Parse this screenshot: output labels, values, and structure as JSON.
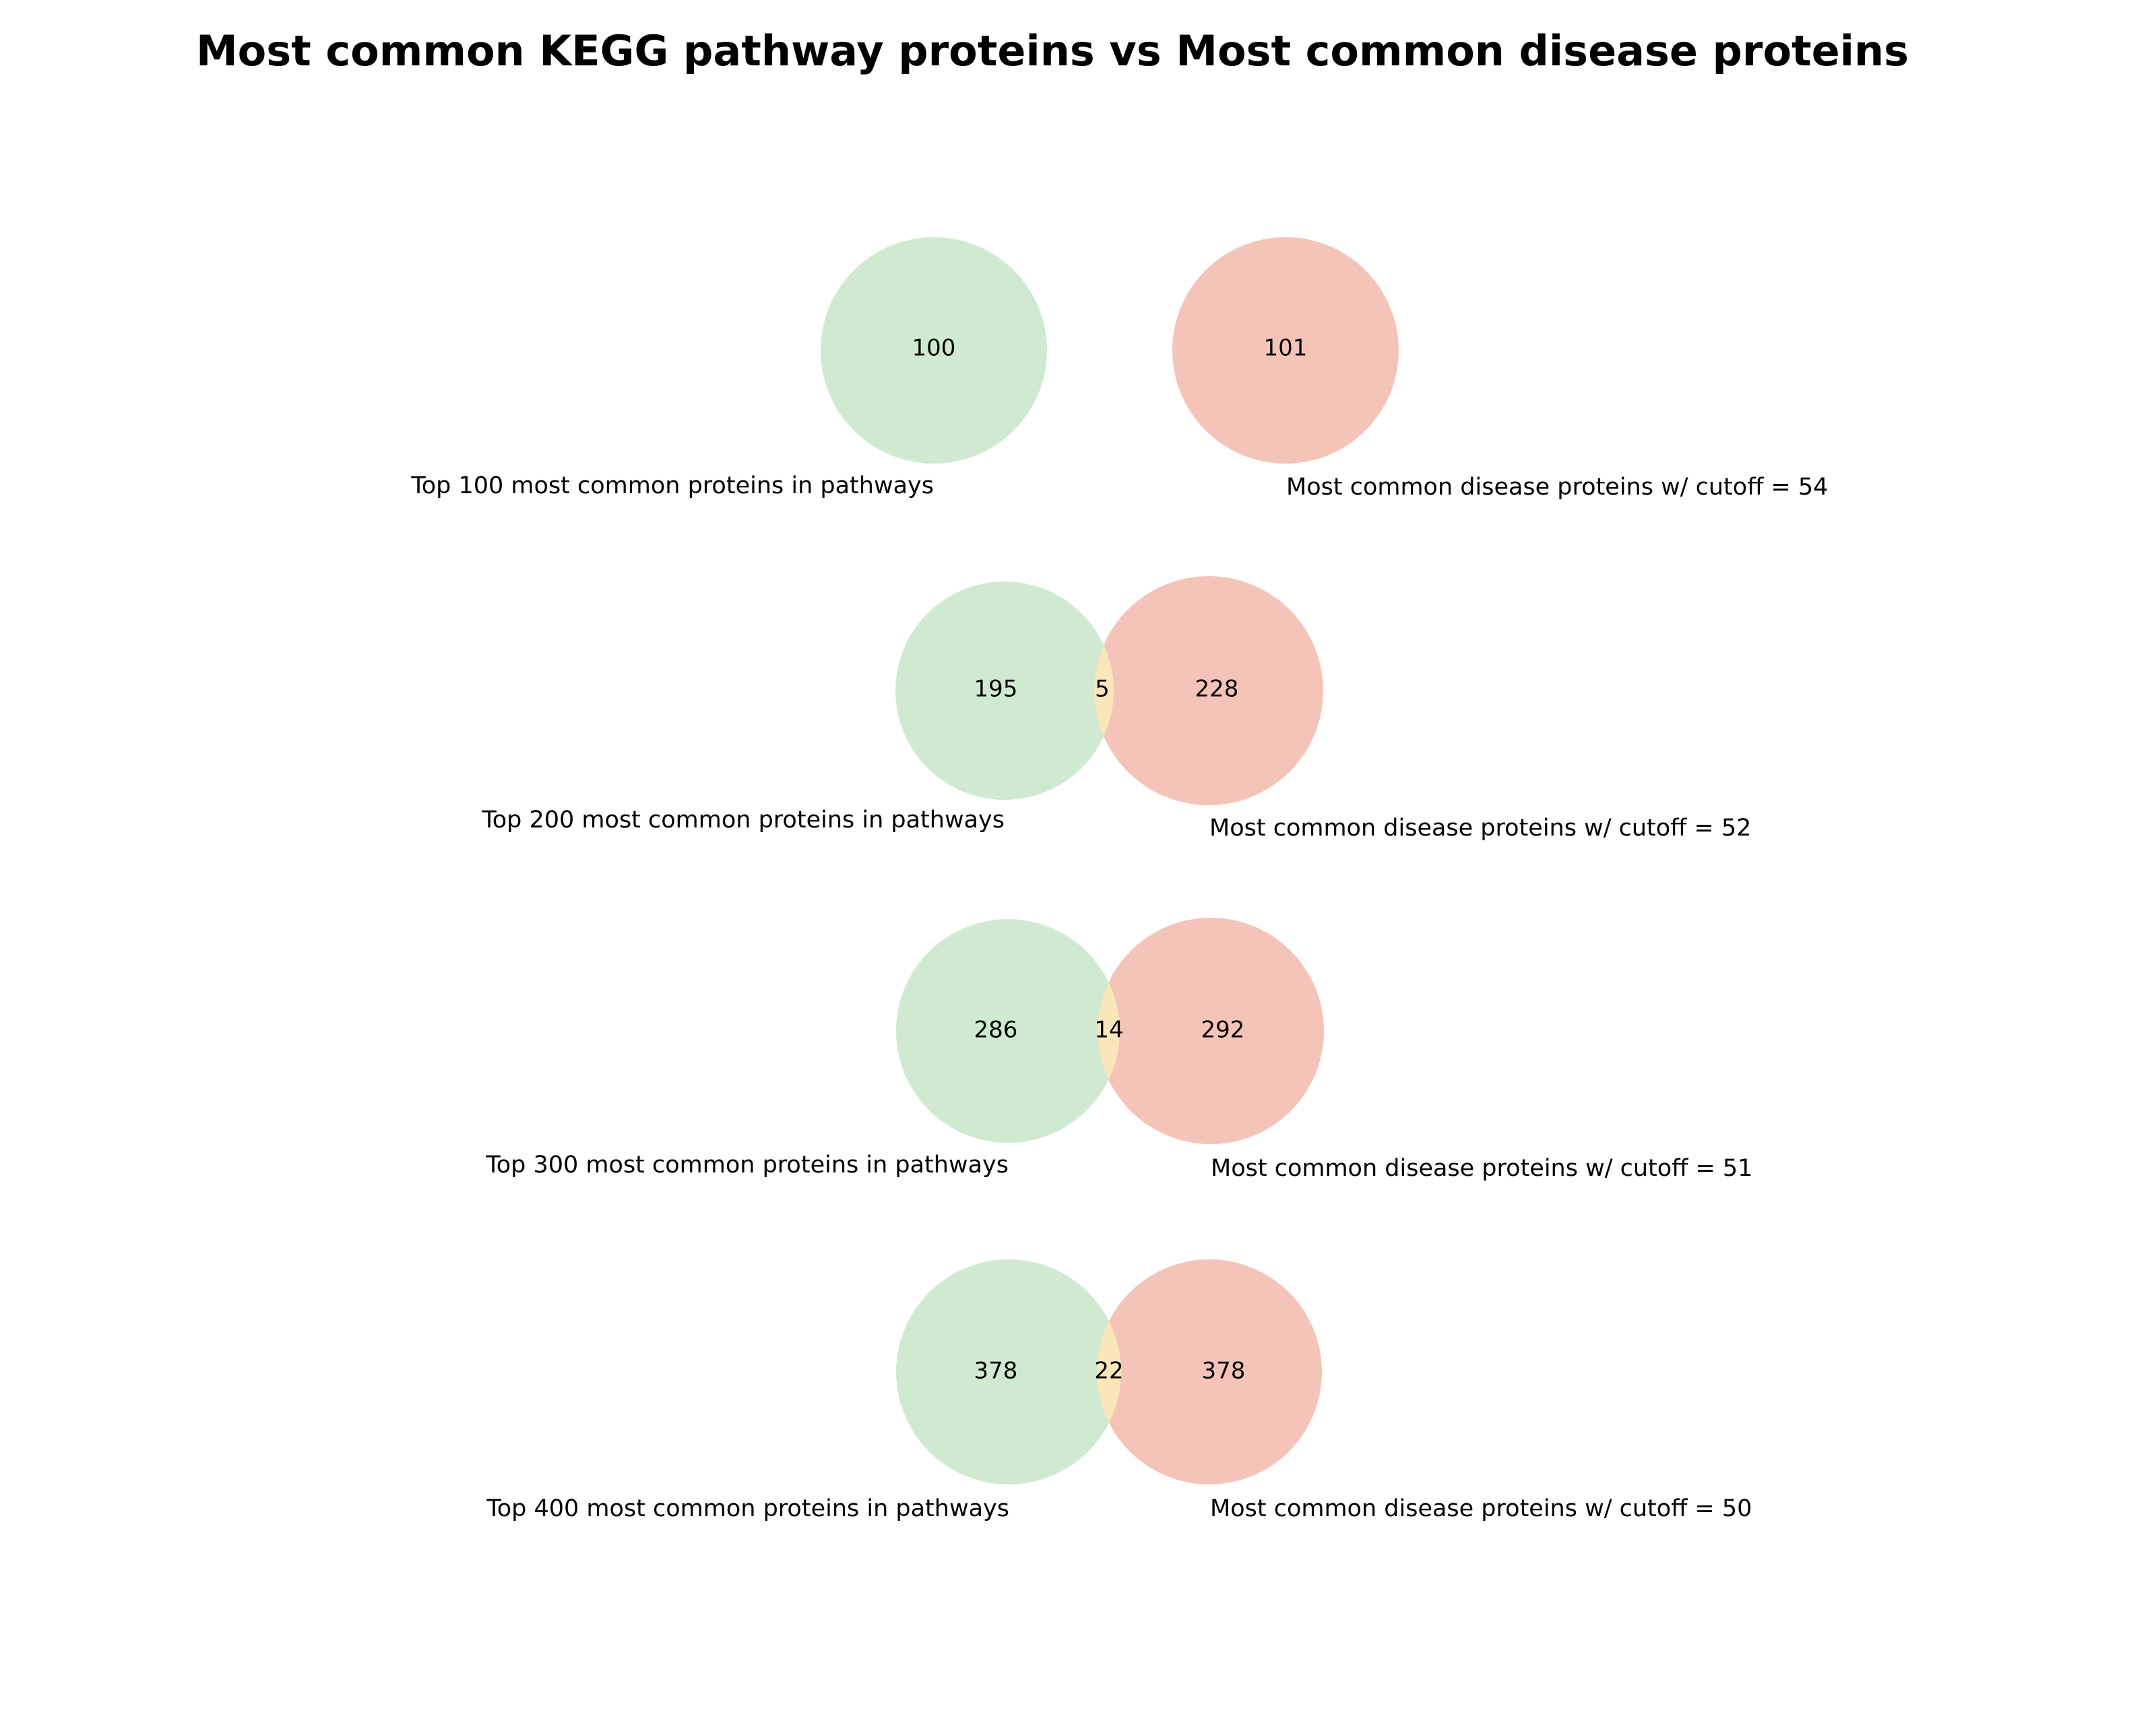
{
  "title": "Most common KEGG pathway proteins vs Most common disease proteins",
  "colors": {
    "pathway_set": "#cfead0",
    "disease_set": "#f5c4b9",
    "overlap": "#fbe5bb",
    "text": "#000000"
  },
  "venns": [
    {
      "pathway_label": "Top 100 most common proteins in pathways",
      "disease_label": "Most common disease proteins w/ cutoff = 54",
      "pathway_only": "100",
      "overlap": "",
      "disease_only": "101"
    },
    {
      "pathway_label": "Top 200 most common proteins in pathways",
      "disease_label": "Most common disease proteins w/ cutoff = 52",
      "pathway_only": "195",
      "overlap": "5",
      "disease_only": "228"
    },
    {
      "pathway_label": "Top 300 most common proteins in pathways",
      "disease_label": "Most common disease proteins w/ cutoff = 51",
      "pathway_only": "286",
      "overlap": "14",
      "disease_only": "292"
    },
    {
      "pathway_label": "Top 400 most common proteins in pathways",
      "disease_label": "Most common disease proteins w/ cutoff = 50",
      "pathway_only": "378",
      "overlap": "22",
      "disease_only": "378"
    }
  ]
}
